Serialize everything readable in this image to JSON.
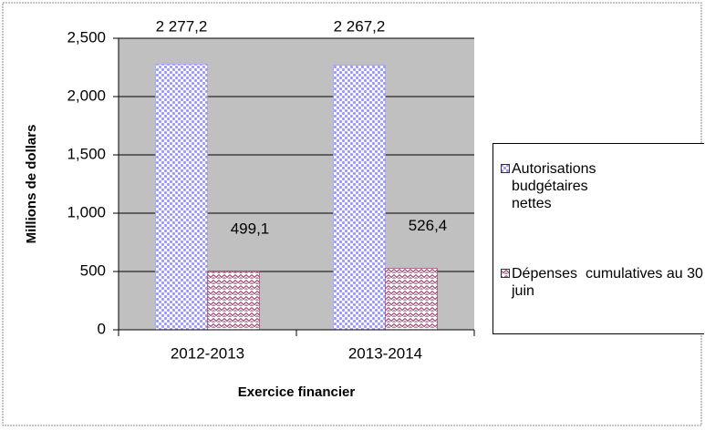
{
  "chart_data": {
    "type": "bar",
    "categories": [
      "2012-2013",
      "2013-2014"
    ],
    "series": [
      {
        "name": "Autorisations budgétaires nettes",
        "color": "#9999ff",
        "values": [
          2277.2,
          2267.2
        ],
        "value_labels": [
          "2 277,2",
          "2 267,2"
        ]
      },
      {
        "name": "Dépenses  cumulatives au 30 juin",
        "color": "#993366",
        "values": [
          499.1,
          526.4
        ],
        "value_labels": [
          "499,1",
          "526,4"
        ]
      }
    ],
    "ylabel": "Millions de dollars",
    "xlabel": "Exercice financier",
    "ylim": [
      0,
      2500
    ],
    "yticks": [
      0,
      500,
      {
        "value": 1000,
        "label": "1,000"
      },
      {
        "value": 1500,
        "label": "1,500"
      },
      {
        "value": 2000,
        "label": "2,000"
      },
      {
        "value": 2500,
        "label": "2,500"
      }
    ],
    "grid": true,
    "legend": "right"
  }
}
